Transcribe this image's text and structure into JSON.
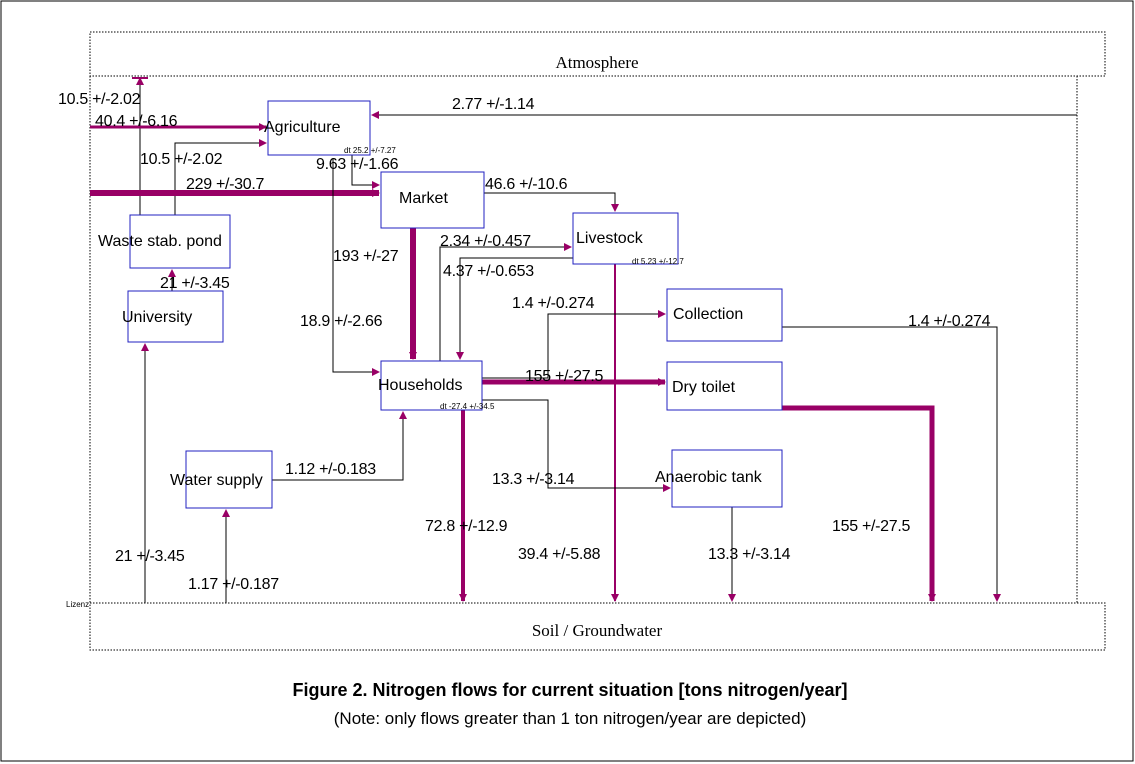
{
  "boundaries": {
    "top": "Atmosphere",
    "bottom": "Soil / Groundwater"
  },
  "nodes": [
    "Agriculture",
    "Market",
    "Livestock",
    "Waste stab. pond",
    "University",
    "Collection",
    "Households",
    "Dry toilet",
    "Water supply",
    "Anaerobic tank"
  ],
  "stock_changes": [
    "dt 25.2 +/-7.27",
    "dt 5.23 +/-12.7",
    "dt -27.4 +/-34.5"
  ],
  "license": "Lizenz",
  "flows": [
    "10.5 +/-2.02",
    "40.4 +/-6.16",
    "10.5 +/-2.02",
    "229 +/-30.7",
    "9.63 +/-1.66",
    "2.77 +/-1.14",
    "46.6 +/-10.6",
    "2.34 +/-0.457",
    "4.37 +/-0.653",
    "193 +/-27",
    "21 +/-3.45",
    "1.4 +/-0.274",
    "18.9 +/-2.66",
    "1.4 +/-0.274",
    "155 +/-27.5",
    "1.12 +/-0.183",
    "13.3 +/-3.14",
    "72.8 +/-12.9",
    "155 +/-27.5",
    "39.4 +/-5.88",
    "13.3 +/-3.14",
    "21 +/-3.45",
    "1.17 +/-0.187"
  ],
  "caption": {
    "title": "Figure 2. Nitrogen flows for current situation [tons nitrogen/year]",
    "note": "(Note: only flows greater than 1 ton nitrogen/year are depicted)"
  }
}
